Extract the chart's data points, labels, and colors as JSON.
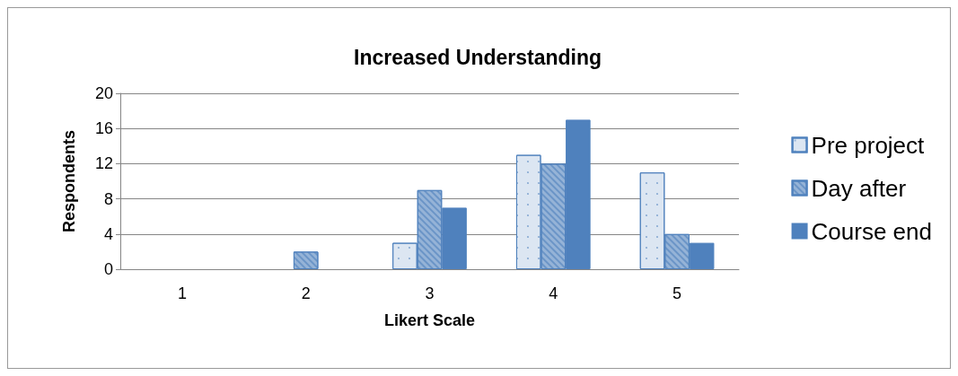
{
  "chart_data": {
    "type": "bar",
    "title": "Increased Understanding",
    "xlabel": "Likert Scale",
    "ylabel": "Respondents",
    "categories": [
      "1",
      "2",
      "3",
      "4",
      "5"
    ],
    "series": [
      {
        "name": "Pre project",
        "color": "#dce6f2",
        "values": [
          0,
          0,
          3,
          13,
          11
        ]
      },
      {
        "name": "Day after",
        "color": "#95b3d7",
        "values": [
          0,
          2,
          9,
          12,
          4
        ]
      },
      {
        "name": "Course end",
        "color": "#4f81bd",
        "values": [
          0,
          0,
          7,
          17,
          3
        ]
      }
    ],
    "ylim": [
      0,
      20
    ],
    "yticks": [
      0,
      4,
      8,
      12,
      16,
      20
    ],
    "grid": "y",
    "legend": "right"
  }
}
